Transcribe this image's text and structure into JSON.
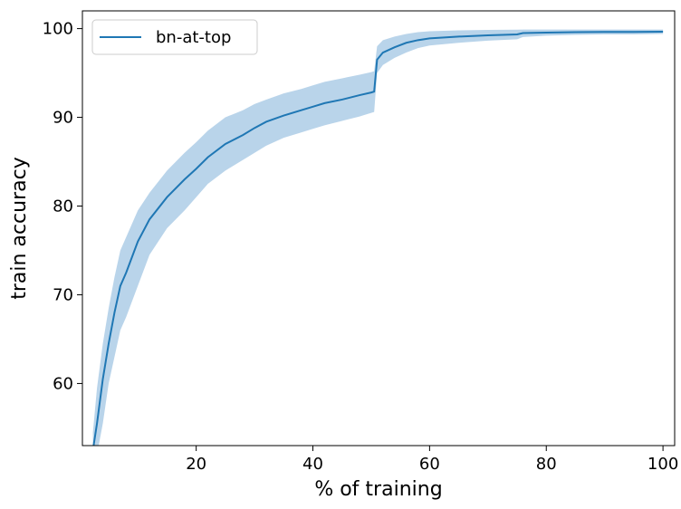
{
  "chart_data": {
    "type": "line",
    "xlabel": "% of training",
    "ylabel": "train accuracy",
    "xlim": [
      0.5,
      102
    ],
    "ylim": [
      53,
      102
    ],
    "xticks": [
      20,
      40,
      60,
      80,
      100
    ],
    "yticks": [
      60,
      70,
      80,
      90,
      100
    ],
    "grid": false,
    "legend_position": "top-left",
    "series": [
      {
        "name": "bn-at-top",
        "color": "#1f77b4",
        "band_color": "#b9d4ea",
        "x": [
          2.3,
          3,
          4,
          5,
          6,
          7,
          8,
          10,
          12,
          15,
          18,
          20,
          22,
          25,
          28,
          30,
          32,
          35,
          38,
          40,
          42,
          45,
          48,
          50,
          50.5,
          51,
          52,
          54,
          56,
          58,
          60,
          65,
          70,
          75,
          76,
          80,
          85,
          90,
          95,
          100
        ],
        "y": [
          52.5,
          55.5,
          60.5,
          64.5,
          68,
          71,
          72.5,
          76,
          78.5,
          81,
          83,
          84.2,
          85.5,
          87,
          88,
          88.8,
          89.5,
          90.2,
          90.8,
          91.2,
          91.6,
          92,
          92.5,
          92.8,
          92.9,
          96.5,
          97.3,
          97.9,
          98.4,
          98.7,
          98.9,
          99.1,
          99.25,
          99.35,
          99.5,
          99.55,
          99.6,
          99.62,
          99.63,
          99.65
        ],
        "upper": [
          54.5,
          59.5,
          64.5,
          68.5,
          72,
          75,
          76.5,
          79.5,
          81.5,
          84,
          86,
          87.2,
          88.5,
          90,
          90.8,
          91.5,
          92,
          92.7,
          93.2,
          93.6,
          94,
          94.4,
          94.8,
          95.1,
          95.2,
          98,
          98.7,
          99.1,
          99.4,
          99.6,
          99.7,
          99.8,
          99.85,
          99.88,
          99.9,
          99.9,
          99.9,
          99.9,
          99.9,
          99.9
        ],
        "lower": [
          50.5,
          52,
          55.5,
          60,
          63,
          66,
          67.5,
          71,
          74.5,
          77.5,
          79.5,
          81,
          82.5,
          84,
          85.2,
          86,
          86.8,
          87.7,
          88.3,
          88.7,
          89.1,
          89.6,
          90.1,
          90.5,
          90.6,
          95,
          95.9,
          96.7,
          97.3,
          97.8,
          98.1,
          98.4,
          98.65,
          98.8,
          99.05,
          99.2,
          99.3,
          99.35,
          99.35,
          99.4
        ]
      }
    ]
  }
}
